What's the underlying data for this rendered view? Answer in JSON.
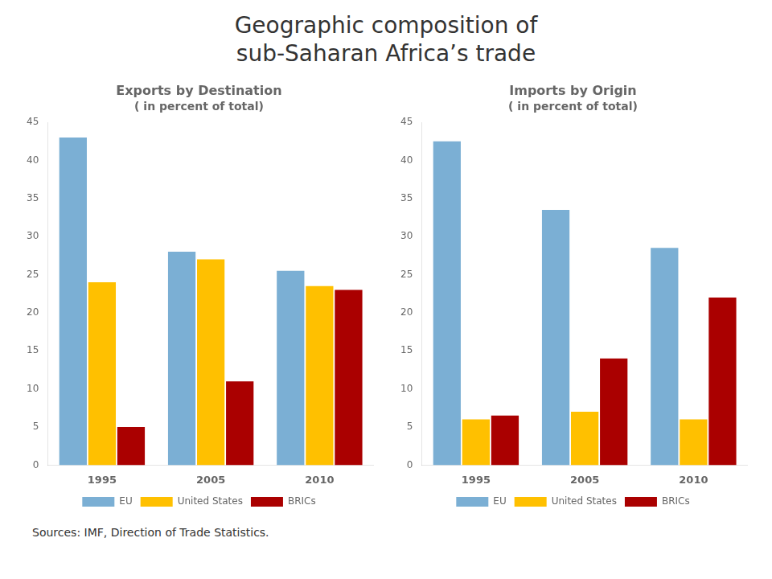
{
  "title": "Geographic composition of\nsub-Saharan Africa’s trade",
  "annotations": [
    "Sources: IMF, Direction of Trade Statistics."
  ],
  "chart_data": [
    {
      "type": "bar",
      "title": "Exports by Destination",
      "subtitle": "( in percent of total)",
      "categories": [
        "1995",
        "2005",
        "2010"
      ],
      "series": [
        {
          "name": "EU",
          "color": "#7bafd4",
          "values": [
            43,
            28,
            25.5
          ]
        },
        {
          "name": "United States",
          "color": "#ffc000",
          "values": [
            24,
            27,
            23.5
          ]
        },
        {
          "name": "BRICs",
          "color": "#aa0000",
          "values": [
            5,
            11,
            23
          ]
        }
      ],
      "ylim": [
        0,
        45
      ],
      "yticks": [
        0,
        5,
        10,
        15,
        20,
        25,
        30,
        35,
        40,
        45
      ],
      "grid": false,
      "legend": "bottom"
    },
    {
      "type": "bar",
      "title": "Imports by Origin",
      "subtitle": "( in percent of total)",
      "categories": [
        "1995",
        "2005",
        "2010"
      ],
      "series": [
        {
          "name": "EU",
          "color": "#7bafd4",
          "values": [
            42.5,
            33.5,
            28.5
          ]
        },
        {
          "name": "United States",
          "color": "#ffc000",
          "values": [
            6,
            7,
            6
          ]
        },
        {
          "name": "BRICs",
          "color": "#aa0000",
          "values": [
            6.5,
            14,
            22
          ]
        }
      ],
      "ylim": [
        0,
        45
      ],
      "yticks": [
        0,
        5,
        10,
        15,
        20,
        25,
        30,
        35,
        40,
        45
      ],
      "grid": false,
      "legend": "bottom"
    }
  ]
}
